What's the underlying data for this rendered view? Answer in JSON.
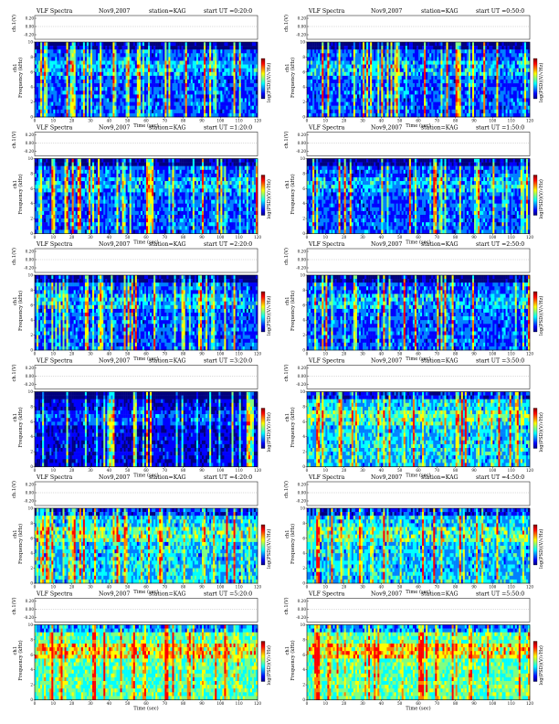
{
  "chart_data": [
    {
      "type": "heatmap",
      "title": {
        "name": "VLF Spectra",
        "date": "Nov9,2007",
        "station": "station=KAG",
        "start": "start  UT =0:20:0"
      },
      "seed": 11,
      "style": "dark"
    },
    {
      "type": "heatmap",
      "title": {
        "name": "VLF Spectra",
        "date": "Nov9,2007",
        "station": "station=KAG",
        "start": "start  UT =0:50:0"
      },
      "seed": 23,
      "style": "dark"
    },
    {
      "type": "heatmap",
      "title": {
        "name": "VLF Spectra",
        "date": "Nov9,2007",
        "station": "station=KAG",
        "start": "start  UT =1:20:0"
      },
      "seed": 37,
      "style": "dark"
    },
    {
      "type": "heatmap",
      "title": {
        "name": "VLF Spectra",
        "date": "Nov9,2007",
        "station": "station=KAG",
        "start": "start  UT =1:50:0"
      },
      "seed": 41,
      "style": "dark"
    },
    {
      "type": "heatmap",
      "title": {
        "name": "VLF Spectra",
        "date": "Nov9,2007",
        "station": "station=KAG",
        "start": "start  UT =2:20:0"
      },
      "seed": 53,
      "style": "dark"
    },
    {
      "type": "heatmap",
      "title": {
        "name": "VLF Spectra",
        "date": "Nov9,2007",
        "station": "station=KAG",
        "start": "start  UT =2:50:0"
      },
      "seed": 61,
      "style": "dark"
    },
    {
      "type": "heatmap",
      "title": {
        "name": "VLF Spectra",
        "date": "Nov9,2007",
        "station": "station=KAG",
        "start": "start  UT =3:20:0"
      },
      "seed": 73,
      "style": "darkest"
    },
    {
      "type": "heatmap",
      "title": {
        "name": "VLF Spectra",
        "date": "Nov9,2007",
        "station": "station=KAG",
        "start": "start  UT =3:50:0"
      },
      "seed": 89,
      "style": "medium"
    },
    {
      "type": "heatmap",
      "title": {
        "name": "VLF Spectra",
        "date": "Nov9,2007",
        "station": "station=KAG",
        "start": "start  UT =4:20:0"
      },
      "seed": 97,
      "style": "medium"
    },
    {
      "type": "heatmap",
      "title": {
        "name": "VLF Spectra",
        "date": "Nov9,2007",
        "station": "station=KAG",
        "start": "start  UT =4:50:0"
      },
      "seed": 101,
      "style": "medium"
    },
    {
      "type": "heatmap",
      "title": {
        "name": "VLF Spectra",
        "date": "Nov9,2007",
        "station": "station=KAG",
        "start": "start  UT =5:20:0"
      },
      "seed": 113,
      "style": "bright"
    },
    {
      "type": "heatmap",
      "title": {
        "name": "VLF Spectra",
        "date": "Nov9,2007",
        "station": "station=KAG",
        "start": "start  UT =5:50:0"
      },
      "seed": 127,
      "style": "bright"
    }
  ],
  "axes": {
    "xlabel": "Time (sec)",
    "ylabel": "Frequency (kHz)",
    "channel_label": "ch1",
    "trace_label": "ch.1(V)",
    "colorbar_label": "log(PSD)(V/√Hz)",
    "xticks": [
      0,
      10,
      20,
      30,
      40,
      50,
      60,
      70,
      80,
      90,
      100,
      110,
      120
    ],
    "yticks": [
      0,
      2,
      4,
      6,
      8,
      10
    ],
    "trace_ticks": [
      "0.20",
      "0.00",
      "-0.20"
    ],
    "xlim": [
      0,
      120
    ],
    "ylim": [
      0,
      10
    ]
  },
  "colormap": [
    "#00007f",
    "#0000ff",
    "#0080ff",
    "#00ffff",
    "#80ff80",
    "#ffff00",
    "#ff8000",
    "#ff0000",
    "#7f0000"
  ]
}
